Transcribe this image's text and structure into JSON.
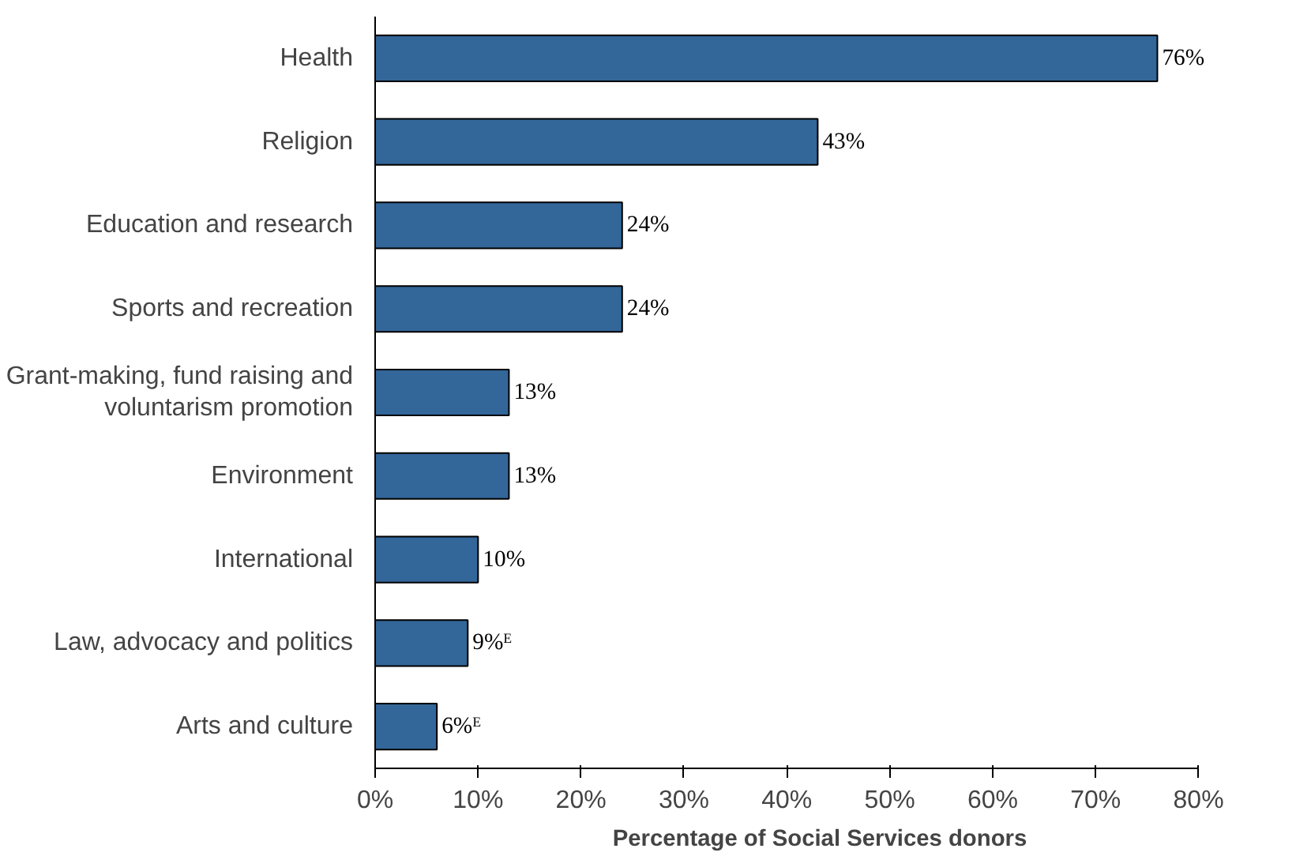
{
  "chart_data": {
    "type": "bar",
    "orientation": "horizontal",
    "xlabel": "Percentage of Social Services donors",
    "categories": [
      "Health",
      "Religion",
      "Education and research",
      "Sports and recreation",
      "Grant-making, fund raising and\nvoluntarism promotion",
      "Environment",
      "International",
      "Law, advocacy and politics",
      "Arts and culture"
    ],
    "values": [
      76,
      43,
      24,
      24,
      13,
      13,
      10,
      9,
      6
    ],
    "value_labels": [
      "76%",
      "43%",
      "24%",
      "24%",
      "13%",
      "13%",
      "10%",
      "9%ᴱ",
      "6%ᴱ"
    ],
    "color": "#336699",
    "xlim": [
      0,
      80
    ],
    "xticks": [
      {
        "value": 0,
        "label": "0%"
      },
      {
        "value": 10,
        "label": "10%"
      },
      {
        "value": 20,
        "label": "20%"
      },
      {
        "value": 30,
        "label": "30%"
      },
      {
        "value": 40,
        "label": "40%"
      },
      {
        "value": 50,
        "label": "50%"
      },
      {
        "value": 60,
        "label": "60%"
      },
      {
        "value": 70,
        "label": "70%"
      },
      {
        "value": 80,
        "label": "80%"
      }
    ],
    "grid": false
  }
}
